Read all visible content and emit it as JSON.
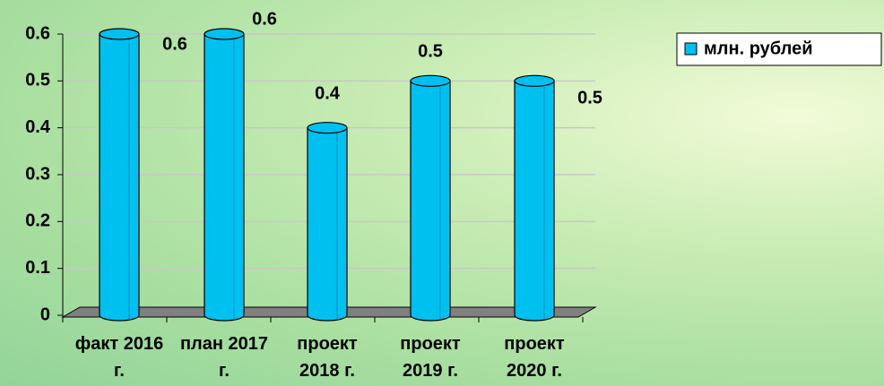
{
  "chart_data": {
    "type": "bar",
    "categories": [
      "факт 2016 г.",
      "план 2017 г.",
      "проект 2018 г.",
      "проект 2019 г.",
      "проект 2020 г."
    ],
    "series": [
      {
        "name": "млн. рублей",
        "color": "#00c0f0",
        "values": [
          0.6,
          0.6,
          0.4,
          0.5,
          0.5
        ]
      }
    ],
    "ylim": [
      0,
      0.6
    ],
    "yticks": [
      0,
      0.1,
      0.2,
      0.3,
      0.4,
      0.5,
      0.6
    ],
    "grid": true,
    "legend": "top-right"
  }
}
